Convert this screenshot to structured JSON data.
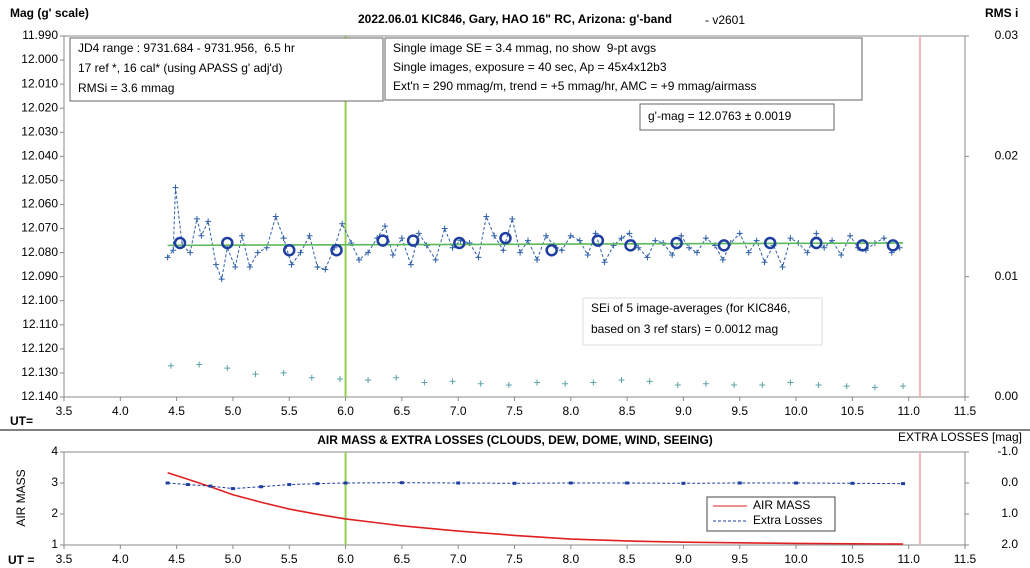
{
  "chart_data": [
    {
      "type": "line",
      "title": "2022.06.01 KIC846, Gary, HAO 16\" RC, Arizona: g'-band",
      "subtitle": "- v2601",
      "y_label": "Mag (g' scale)",
      "y2_label": "RMS i",
      "x_label": "UT=",
      "xlim": [
        3.5,
        11.5
      ],
      "xticks": [
        3.5,
        {
          "value": 4,
          "label": "4.0"
        },
        4.5,
        {
          "value": 5,
          "label": "5.0"
        },
        5.5,
        {
          "value": 6,
          "label": "6.0"
        },
        6.5,
        {
          "value": 7,
          "label": "7.0"
        },
        7.5,
        {
          "value": 8,
          "label": "8.0"
        },
        8.5,
        {
          "value": 9,
          "label": "9.0"
        },
        9.5,
        {
          "value": 10,
          "label": "10.0"
        },
        10.5,
        {
          "value": 11,
          "label": "11.0"
        },
        11.5
      ],
      "ylim": [
        12.14,
        11.99
      ],
      "yticks": [
        {
          "value": 11.99,
          "label": "11.990"
        },
        {
          "value": 12.0,
          "label": "12.000"
        },
        {
          "value": 12.01,
          "label": "12.010"
        },
        {
          "value": 12.02,
          "label": "12.020"
        },
        {
          "value": 12.03,
          "label": "12.030"
        },
        {
          "value": 12.04,
          "label": "12.040"
        },
        {
          "value": 12.05,
          "label": "12.050"
        },
        {
          "value": 12.06,
          "label": "12.060"
        },
        {
          "value": 12.07,
          "label": "12.070"
        },
        {
          "value": 12.08,
          "label": "12.080"
        },
        {
          "value": 12.09,
          "label": "12.090"
        },
        {
          "value": 12.1,
          "label": "12.100"
        },
        {
          "value": 12.11,
          "label": "12.110"
        },
        {
          "value": 12.12,
          "label": "12.120"
        },
        {
          "value": 12.13,
          "label": "12.130"
        },
        {
          "value": 12.14,
          "label": "12.140"
        }
      ],
      "y2lim": [
        0,
        0.03
      ],
      "y2ticks": [
        {
          "value": 0,
          "label": "0.00"
        },
        {
          "value": 0.01,
          "label": "0.01"
        },
        {
          "value": 0.02,
          "label": "0.02"
        },
        {
          "value": 0.03,
          "label": "0.03"
        }
      ],
      "vlines": [
        {
          "x": 6.0,
          "color": "#92d050"
        },
        {
          "x": 11.1,
          "color": "#f4b6b6"
        }
      ],
      "series": [
        {
          "color": "#2e5fa8",
          "marker": "plus",
          "line": "dashed",
          "x": [
            4.42,
            4.47,
            4.49,
            4.55,
            4.62,
            4.68,
            4.72,
            4.78,
            4.85,
            4.9,
            4.95,
            5.02,
            5.08,
            5.15,
            5.22,
            5.3,
            5.38,
            5.45,
            5.52,
            5.6,
            5.68,
            5.75,
            5.82,
            5.9,
            5.97,
            6.05,
            6.12,
            6.2,
            6.28,
            6.35,
            6.42,
            6.5,
            6.58,
            6.65,
            6.72,
            6.8,
            6.88,
            6.95,
            7.02,
            7.1,
            7.18,
            7.25,
            7.32,
            7.4,
            7.48,
            7.55,
            7.62,
            7.7,
            7.78,
            7.85,
            7.92,
            8.0,
            8.08,
            8.15,
            8.22,
            8.3,
            8.38,
            8.45,
            8.52,
            8.6,
            8.68,
            8.75,
            8.82,
            8.9,
            8.98,
            9.05,
            9.12,
            9.2,
            9.28,
            9.35,
            9.42,
            9.5,
            9.58,
            9.65,
            9.72,
            9.8,
            9.88,
            9.95,
            10.02,
            10.1,
            10.18,
            10.25,
            10.32,
            10.4,
            10.48,
            10.55,
            10.62,
            10.7,
            10.78,
            10.85,
            10.92
          ],
          "values": [
            12.082,
            12.079,
            12.053,
            12.077,
            12.08,
            12.066,
            12.073,
            12.067,
            12.085,
            12.091,
            12.078,
            12.086,
            12.073,
            12.086,
            12.08,
            12.078,
            12.065,
            12.074,
            12.085,
            12.08,
            12.073,
            12.086,
            12.087,
            12.078,
            12.068,
            12.076,
            12.083,
            12.08,
            12.074,
            12.069,
            12.081,
            12.074,
            12.085,
            12.072,
            12.077,
            12.083,
            12.07,
            12.078,
            12.075,
            12.076,
            12.082,
            12.065,
            12.073,
            12.079,
            12.066,
            12.08,
            12.075,
            12.083,
            12.073,
            12.077,
            12.079,
            12.073,
            12.075,
            12.081,
            12.072,
            12.084,
            12.077,
            12.074,
            12.072,
            12.078,
            12.082,
            12.075,
            12.076,
            12.081,
            12.073,
            12.078,
            12.08,
            12.074,
            12.077,
            12.083,
            12.076,
            12.072,
            12.08,
            12.075,
            12.084,
            12.077,
            12.086,
            12.074,
            12.076,
            12.08,
            12.072,
            12.078,
            12.075,
            12.081,
            12.073,
            12.078,
            12.079,
            12.076,
            12.074,
            12.08,
            12.078
          ]
        },
        {
          "color": "#5cb85c",
          "marker": "none",
          "line": "solid",
          "x": [
            4.42,
            10.95
          ],
          "values": [
            12.077,
            12.076
          ]
        },
        {
          "color": "#1f3fa0",
          "marker": "circle",
          "line": "none",
          "x": [
            4.53,
            4.95,
            5.5,
            5.92,
            6.33,
            6.6,
            7.01,
            7.42,
            7.83,
            8.24,
            8.53,
            8.94,
            9.36,
            9.77,
            10.18,
            10.59,
            10.86
          ],
          "values": [
            12.076,
            12.076,
            12.079,
            12.079,
            12.075,
            12.075,
            12.076,
            12.074,
            12.079,
            12.075,
            12.077,
            12.076,
            12.077,
            12.076,
            12.076,
            12.077,
            12.077
          ]
        },
        {
          "color": "#5ba3a8",
          "marker": "plus",
          "line": "none",
          "axis": "y2",
          "x": [
            4.45,
            4.7,
            4.95,
            5.2,
            5.45,
            5.7,
            5.95,
            6.2,
            6.45,
            6.7,
            6.95,
            7.2,
            7.45,
            7.7,
            7.95,
            8.2,
            8.45,
            8.7,
            8.95,
            9.2,
            9.45,
            9.7,
            9.95,
            10.2,
            10.45,
            10.7,
            10.95
          ],
          "values": [
            0.0026,
            0.0027,
            0.0024,
            0.0019,
            0.002,
            0.0016,
            0.0015,
            0.0014,
            0.0016,
            0.0012,
            0.0013,
            0.0011,
            0.001,
            0.0012,
            0.0011,
            0.0012,
            0.0014,
            0.0013,
            0.001,
            0.0011,
            0.001,
            0.001,
            0.0012,
            0.001,
            0.0009,
            0.0008,
            0.0009
          ]
        }
      ],
      "annotations": [
        {
          "lines": [
            "JD4 range : 9731.684 - 9731.956,  6.5 hr",
            "17 ref *, 16 cal* (using APASS g' adj'd)",
            "RMSi = 3.6 mmag"
          ]
        },
        {
          "lines": [
            "Single image SE = 3.4 mmag, no show  9-pt avgs",
            "Single images, exposure = 40 sec, Ap = 45x4x12b3",
            "Ext'n = 290 mmag/m, trend = +5 mmag/hr, AMC = +9 mmag/airmass"
          ]
        },
        {
          "lines": [
            "g'-mag = 12.0763 ± 0.0019"
          ]
        },
        {
          "lines": [
            "SEi of 5 image-averages (for KIC846,",
            "based on 3 ref stars) = 0.0012 mag"
          ]
        }
      ]
    },
    {
      "type": "line",
      "title": "AIR MASS & EXTRA LOSSES (CLOUDS, DEW, DOME, WIND, SEEING)",
      "y_label": "AIR MASS",
      "y2_label": "EXTRA LOSSES [mag]",
      "x_label": "UT =",
      "xlim": [
        3.5,
        11.5
      ],
      "xticks": [
        3.5,
        {
          "value": 4,
          "label": "4.0"
        },
        4.5,
        {
          "value": 5,
          "label": "5.0"
        },
        5.5,
        {
          "value": 6,
          "label": "6.0"
        },
        6.5,
        {
          "value": 7,
          "label": "7.0"
        },
        7.5,
        {
          "value": 8,
          "label": "8.0"
        },
        8.5,
        {
          "value": 9,
          "label": "9.0"
        },
        9.5,
        {
          "value": 10,
          "label": "10.0"
        },
        10.5,
        {
          "value": 11,
          "label": "11.0"
        },
        11.5
      ],
      "ylim": [
        1,
        4
      ],
      "yticks": [
        1,
        2,
        3,
        4
      ],
      "y2lim": [
        2,
        -1
      ],
      "y2ticks": [
        {
          "value": -1,
          "label": "-1.0"
        },
        {
          "value": 0,
          "label": "0.0"
        },
        {
          "value": 1,
          "label": "1.0"
        },
        {
          "value": 2,
          "label": "2.0"
        }
      ],
      "vlines": [
        {
          "x": 6.0,
          "color": "#92d050"
        },
        {
          "x": 11.1,
          "color": "#f4b6b6"
        }
      ],
      "legend": "lower right",
      "series": [
        {
          "name": "AIR MASS",
          "color": "#e02020",
          "marker": "none",
          "line": "solid",
          "x": [
            4.42,
            4.6,
            4.8,
            5.0,
            5.25,
            5.5,
            5.75,
            6.0,
            6.5,
            7.0,
            7.5,
            8.0,
            8.5,
            9.0,
            9.5,
            10.0,
            10.5,
            10.95
          ],
          "values": [
            3.33,
            3.12,
            2.88,
            2.62,
            2.38,
            2.16,
            1.99,
            1.84,
            1.62,
            1.45,
            1.31,
            1.19,
            1.13,
            1.09,
            1.07,
            1.05,
            1.04,
            1.03
          ]
        },
        {
          "name": "Extra Losses",
          "color": "#1f3fa0",
          "marker": "dot",
          "line": "dashed",
          "axis": "y2",
          "x": [
            4.42,
            4.6,
            4.8,
            5.0,
            5.25,
            5.5,
            5.75,
            6.0,
            6.5,
            7.0,
            7.5,
            8.0,
            8.5,
            9.0,
            9.5,
            10.0,
            10.5,
            10.95
          ],
          "values": [
            0.0,
            0.05,
            0.1,
            0.18,
            0.12,
            0.05,
            0.02,
            0.0,
            -0.01,
            0.0,
            0.01,
            0.0,
            0.0,
            0.01,
            0.0,
            0.0,
            0.01,
            0.02
          ]
        }
      ]
    }
  ]
}
